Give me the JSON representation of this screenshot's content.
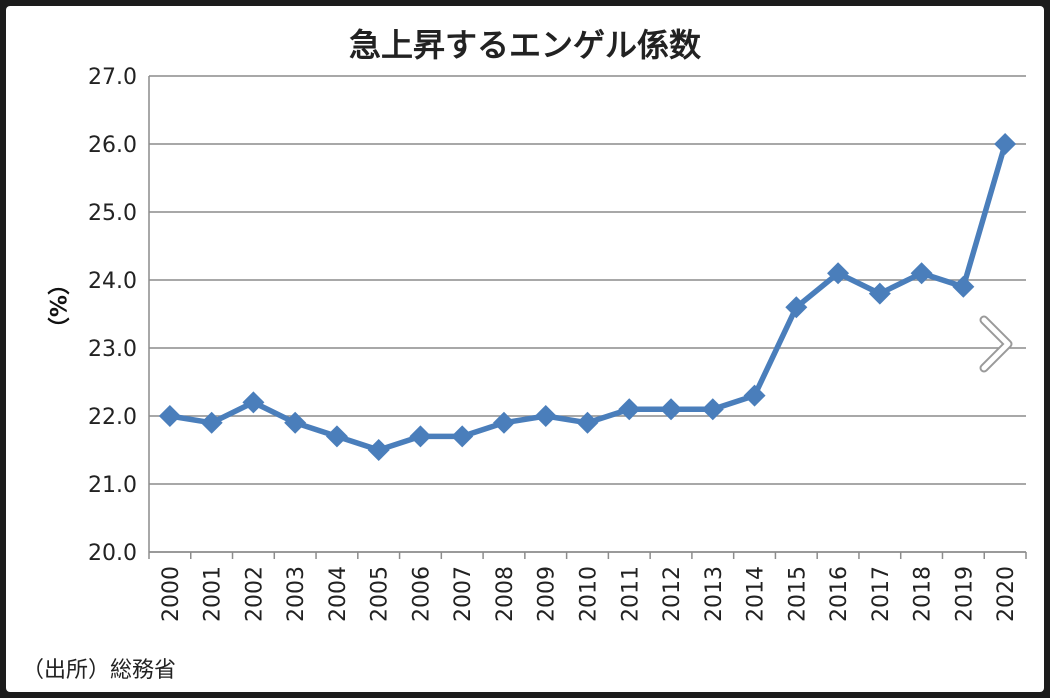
{
  "chart_data": {
    "type": "line",
    "title": "急上昇するエンゲル係数",
    "xlabel": "",
    "ylabel": "（%）",
    "ylim": [
      20.0,
      27.0
    ],
    "y_ticks": [
      "20.0",
      "21.0",
      "22.0",
      "23.0",
      "24.0",
      "25.0",
      "26.0",
      "27.0"
    ],
    "grid": true,
    "legend": "none",
    "categories": [
      "2000",
      "2001",
      "2002",
      "2003",
      "2004",
      "2005",
      "2006",
      "2007",
      "2008",
      "2009",
      "2010",
      "2011",
      "2012",
      "2013",
      "2014",
      "2015",
      "2016",
      "2017",
      "2018",
      "2019",
      "2020"
    ],
    "series": [
      {
        "values": [
          22.0,
          21.9,
          22.2,
          21.9,
          21.7,
          21.5,
          21.7,
          21.7,
          21.9,
          22.0,
          21.9,
          22.1,
          22.1,
          22.1,
          22.3,
          23.6,
          24.1,
          23.8,
          24.1,
          23.9,
          26.0
        ],
        "color": "#4a7ebb"
      }
    ],
    "source": "（出所）総務省"
  },
  "ui": {
    "next_icon": "chevron-right-icon"
  }
}
